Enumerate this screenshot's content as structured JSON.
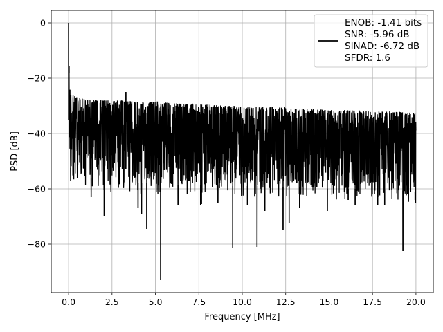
{
  "chart_data": {
    "type": "line",
    "title": "",
    "xlabel": "Frequency [MHz]",
    "ylabel": "PSD [dB]",
    "xlim": [
      -1.0,
      21.0
    ],
    "ylim": [
      -97.5,
      4.5
    ],
    "xticks": [
      0.0,
      2.5,
      5.0,
      7.5,
      10.0,
      12.5,
      15.0,
      17.5,
      20.0
    ],
    "xtick_labels": [
      "0.0",
      "2.5",
      "5.0",
      "7.5",
      "10.0",
      "12.5",
      "15.0",
      "17.5",
      "20.0"
    ],
    "yticks": [
      0,
      -20,
      -40,
      -60,
      -80
    ],
    "ytick_labels": [
      "0",
      "−20",
      "−40",
      "−60",
      "−80"
    ],
    "grid": true,
    "legend_position": "top-right",
    "legend_lines": [
      "ENOB: -1.41 bits",
      "SNR: -5.96 dB",
      "SINAD: -6.72 dB",
      "SFDR: 1.6"
    ],
    "line_color": "#000000",
    "series": [
      {
        "name": "ENOB: -1.41 bits",
        "envelope": {
          "x": [
            0.0,
            0.02,
            0.05,
            0.1,
            0.2,
            0.5,
            1.0,
            2.0,
            3.0,
            4.0,
            5.0,
            6.0,
            7.0,
            8.0,
            9.0,
            10.0,
            11.0,
            12.0,
            13.0,
            14.0,
            15.0,
            16.0,
            17.0,
            18.0,
            19.0,
            20.0
          ],
          "upper": [
            0.0,
            -16.0,
            -22.0,
            -24.0,
            -26.0,
            -27.0,
            -27.5,
            -28.0,
            -28.0,
            -28.5,
            -28.5,
            -29.0,
            -29.5,
            -29.5,
            -30.0,
            -30.0,
            -30.5,
            -30.5,
            -31.0,
            -31.0,
            -31.5,
            -31.5,
            -32.0,
            -32.0,
            -32.0,
            -32.5
          ],
          "lower": [
            -35.0,
            -45.0,
            -50.0,
            -52.0,
            -54.0,
            -55.0,
            -56.0,
            -57.0,
            -57.5,
            -58.0,
            -58.0,
            -58.5,
            -58.5,
            -58.5,
            -59.0,
            -59.0,
            -59.0,
            -59.5,
            -59.5,
            -59.5,
            -60.0,
            -60.0,
            -60.0,
            -60.0,
            -60.5,
            -61.0
          ]
        },
        "spikes": [
          {
            "x": 0.0,
            "y": 0.0
          },
          {
            "x": 0.03,
            "y": -15.5
          },
          {
            "x": 3.3,
            "y": -25.0
          },
          {
            "x": 5.3,
            "y": -93.0
          },
          {
            "x": 4.5,
            "y": -74.5
          },
          {
            "x": 9.45,
            "y": -81.5
          },
          {
            "x": 10.85,
            "y": -81.0
          },
          {
            "x": 12.35,
            "y": -75.0
          },
          {
            "x": 12.7,
            "y": -72.5
          },
          {
            "x": 19.25,
            "y": -82.5
          },
          {
            "x": 2.05,
            "y": -70.0
          },
          {
            "x": 1.3,
            "y": -63.0
          },
          {
            "x": 4.2,
            "y": -69.0
          },
          {
            "x": 4.0,
            "y": -67.0
          },
          {
            "x": 6.3,
            "y": -66.0
          },
          {
            "x": 7.6,
            "y": -66.0
          },
          {
            "x": 7.65,
            "y": -65.5
          },
          {
            "x": 8.6,
            "y": -65.0
          },
          {
            "x": 10.3,
            "y": -66.0
          },
          {
            "x": 11.3,
            "y": -68.0
          },
          {
            "x": 13.3,
            "y": -67.0
          },
          {
            "x": 14.9,
            "y": -68.0
          },
          {
            "x": 16.1,
            "y": -64.0
          },
          {
            "x": 16.5,
            "y": -66.0
          },
          {
            "x": 17.8,
            "y": -66.0
          },
          {
            "x": 18.2,
            "y": -66.0
          },
          {
            "x": 19.95,
            "y": -64.0
          },
          {
            "x": 0.12,
            "y": -57.0
          }
        ]
      }
    ]
  }
}
